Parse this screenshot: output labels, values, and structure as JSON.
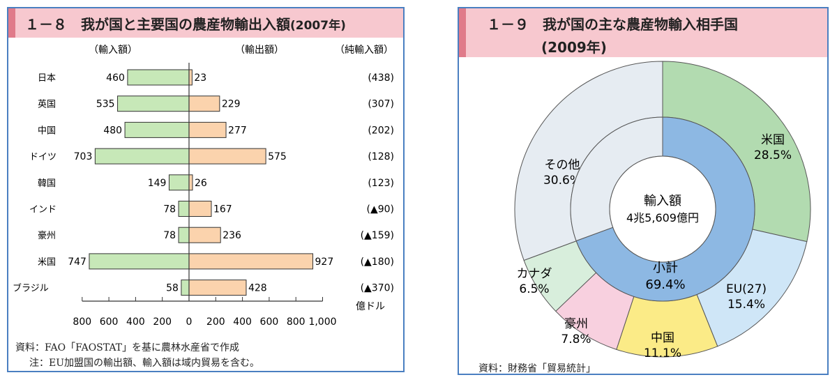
{
  "left": {
    "title_number": "１－８",
    "title": "我が国と主要国の農産物輸出入額",
    "title_year": "(2007年)",
    "col_import": "（輸入額）",
    "col_export": "（輸出額）",
    "col_net": "（純輸入額）",
    "unit": "億ドル",
    "source": "資料：FAO「FAOSTAT」を基に農林水産省で作成",
    "note": "注：EU加盟国の輸出額、輸入額は域内貿易を含む。"
  },
  "right": {
    "title_number": "１－９",
    "title": "我が国の主な農産物輸入相手国",
    "title_year": "(2009年)",
    "center_label": "輸入額",
    "center_value": "4兆5,609億円",
    "subtotal_label": "小計",
    "subtotal_value": "69.4%",
    "source": "資料：財務省「貿易統計」"
  },
  "chart_data": [
    {
      "type": "bar",
      "orientation": "horizontal-diverging",
      "categories": [
        "日本",
        "英国",
        "中国",
        "ドイツ",
        "韓国",
        "インド",
        "豪州",
        "米国",
        "ブラジル"
      ],
      "series": [
        {
          "name": "輸入額",
          "values": [
            460,
            535,
            480,
            703,
            149,
            78,
            78,
            747,
            58
          ],
          "color": "#c7e8b8"
        },
        {
          "name": "輸出額",
          "values": [
            23,
            229,
            277,
            575,
            26,
            167,
            236,
            927,
            428
          ],
          "color": "#fbd3ad"
        }
      ],
      "net_import_labels": [
        "(438)",
        "(307)",
        "(202)",
        "(128)",
        "(123)",
        "(▲90)",
        "(▲159)",
        "(▲180)",
        "(▲370)"
      ],
      "xlim": [
        -800,
        1000
      ],
      "ticks": [
        -800,
        -600,
        -400,
        -200,
        0,
        200,
        400,
        600,
        800,
        1000
      ],
      "tick_labels": [
        "800",
        "600",
        "400",
        "200",
        "0",
        "200",
        "400",
        "600",
        "800",
        "1,000"
      ],
      "ylabel": "",
      "xlabel": "億ドル"
    },
    {
      "type": "pie",
      "subtype": "double-donut",
      "outer": [
        {
          "label": "米国",
          "value": 28.5,
          "display": "28.5%",
          "color": "#b2dbb0"
        },
        {
          "label": "EU(27)",
          "value": 15.4,
          "display": "15.4%",
          "color": "#cfe6f7"
        },
        {
          "label": "中国",
          "value": 11.1,
          "display": "11.1%",
          "color": "#fbeb87"
        },
        {
          "label": "豪州",
          "value": 7.8,
          "display": "7.8%",
          "color": "#f8d0df"
        },
        {
          "label": "カナダ",
          "value": 6.5,
          "display": "6.5%",
          "color": "#d8eedc"
        },
        {
          "label": "その他",
          "value": 30.6,
          "display": "30.6%",
          "color": "#e6ecf2"
        }
      ],
      "inner": [
        {
          "label": "小計",
          "value": 69.4,
          "color": "#8db8e3"
        },
        {
          "label": "",
          "value": 30.6,
          "color": "#e6ecf2"
        }
      ]
    }
  ]
}
